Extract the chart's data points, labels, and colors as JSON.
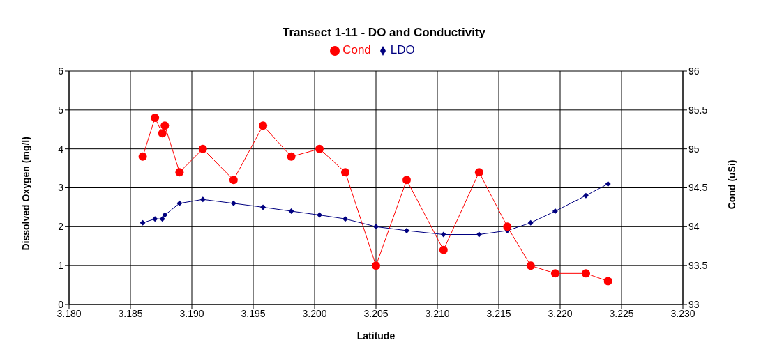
{
  "chart_data": {
    "type": "line",
    "title": "Transect 1-11 - DO and Conductivity",
    "xlabel": "Latitude",
    "ylabel": "Dissolved Oxygen (mg/l)",
    "y2label": "Cond (uSi)",
    "x": [
      3.186,
      3.187,
      3.1876,
      3.1878,
      3.189,
      3.1909,
      3.1934,
      3.1958,
      3.1981,
      3.2004,
      3.2025,
      3.205,
      3.2075,
      3.2105,
      3.2134,
      3.2157,
      3.2176,
      3.2196,
      3.2221,
      3.2239
    ],
    "series": [
      {
        "name": "LDO",
        "color": "#000080",
        "marker": "diamond",
        "values": [
          2.1,
          2.2,
          2.2,
          2.3,
          2.6,
          2.7,
          2.6,
          2.5,
          2.4,
          2.3,
          2.2,
          2.0,
          1.9,
          1.8,
          1.8,
          1.9,
          2.1,
          2.4,
          2.8,
          3.1
        ]
      },
      {
        "name": "Cond",
        "color": "#ff0000",
        "marker": "circle",
        "axis": "y2",
        "values": [
          94.9,
          95.4,
          95.2,
          95.3,
          94.7,
          95,
          94.6,
          95.3,
          94.9,
          95,
          94.7,
          93.5,
          94.6,
          93.7,
          94.7,
          94,
          93.5,
          93.4,
          93.4,
          93.3
        ]
      }
    ],
    "xlim": [
      3.18,
      3.23
    ],
    "xticks": [
      {
        "value": 3.18,
        "label": "3.180"
      },
      {
        "value": 3.185,
        "label": "3.185"
      },
      {
        "value": 3.19,
        "label": "3.190"
      },
      {
        "value": 3.195,
        "label": "3.195"
      },
      {
        "value": 3.2,
        "label": "3.200"
      },
      {
        "value": 3.205,
        "label": "3.205"
      },
      {
        "value": 3.21,
        "label": "3.210"
      },
      {
        "value": 3.215,
        "label": "3.215"
      },
      {
        "value": 3.22,
        "label": "3.220"
      },
      {
        "value": 3.225,
        "label": "3.225"
      },
      {
        "value": 3.23,
        "label": "3.230"
      }
    ],
    "ylim": [
      0,
      6
    ],
    "yticks": [
      0,
      1,
      2,
      3,
      4,
      5,
      6
    ],
    "y2lim": [
      93,
      96
    ],
    "y2ticks": [
      93,
      93.5,
      94,
      94.5,
      95,
      95.5,
      96
    ],
    "grid": true,
    "legend": "top"
  }
}
